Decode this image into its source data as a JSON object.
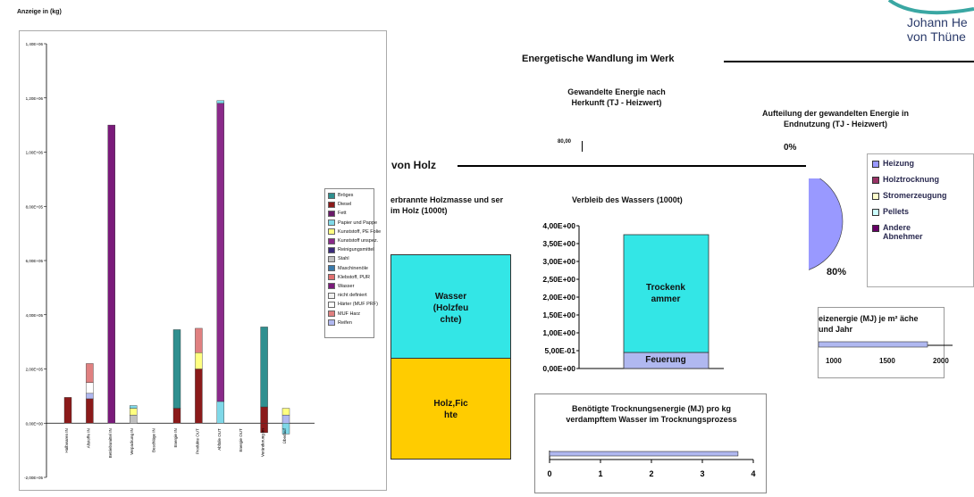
{
  "header": {
    "logo_line1": "Johann He",
    "logo_line2": "von Thüne",
    "logo_arc_color": "#3aa7a3",
    "section_title": "Energetische Wandlung im Werk",
    "holz_title": "von Holz"
  },
  "chart_data": [
    {
      "type": "bar",
      "stacked": true,
      "title": "Anzeige in (kg)",
      "ylim": [
        -200000,
        1400000
      ],
      "yticks": [
        "1,40E+06",
        "1,20E+06",
        "1,00E+06",
        "8,00E+05",
        "6,00E+05",
        "4,00E+05",
        "2,00E+05",
        "0,00E+00",
        "-2,00E+05"
      ],
      "categories": [
        "Halbwaren IN",
        "Altstoffe IN",
        "Betriebsmittel IN",
        "Verpackung IN",
        "Beschläge IN",
        "Energie IN",
        "Produkte OUT",
        "Abfälle OUT",
        "Energie OUT",
        "Veränderung im ",
        "Überlauf"
      ],
      "legend": [
        "Bröges",
        "Diesel",
        "Fett",
        "Papier und Pappe",
        "Kunststoff, PE Folie",
        "Kunststoff unspez.",
        "Reinigungsmittel",
        "Stahl",
        "Maschinenöle",
        "Klebstoff, PUR",
        "Wasser",
        "nicht definiert",
        "Härter (MUF PRF)",
        "MUF Harz",
        "Reifen"
      ],
      "colors": [
        "#2f8f8f",
        "#8b1a1a",
        "#6a1a6a",
        "#7fd8e8",
        "#ffff80",
        "#8a2a8a",
        "#3a2a7a",
        "#c0c0c0",
        "#3a7aaa",
        "#e07070",
        "#7a1a7a",
        "#f0f0f0",
        "#ffffff",
        "#e08080",
        "#b0b8f0"
      ],
      "stacks": [
        [
          {
            "s": 1,
            "v": 95000
          }
        ],
        [
          {
            "s": 1,
            "v": 90000
          },
          {
            "s": 14,
            "v": 20000
          },
          {
            "s": 12,
            "v": 40000
          },
          {
            "s": 13,
            "v": 70000
          }
        ],
        [
          {
            "s": 10,
            "v": 1100000
          }
        ],
        [
          {
            "s": 7,
            "v": 30000
          },
          {
            "s": 4,
            "v": 25000
          },
          {
            "s": 3,
            "v": 10000
          }
        ],
        [],
        [
          {
            "s": 1,
            "v": 55000
          },
          {
            "s": 0,
            "v": 290000
          }
        ],
        [
          {
            "s": 1,
            "v": 200000
          },
          {
            "s": 4,
            "v": 60000
          },
          {
            "s": 13,
            "v": 90000
          }
        ],
        [
          {
            "s": 3,
            "v": 80000
          },
          {
            "s": 5,
            "v": 1100000
          },
          {
            "s": 3,
            "v": 10000
          }
        ],
        [],
        [
          {
            "s": 1,
            "v": -35000
          },
          {
            "s": 1,
            "v": 60000
          },
          {
            "s": 0,
            "v": 295000
          }
        ],
        [
          {
            "s": 3,
            "v": -40000
          },
          {
            "s": 14,
            "v": 30000
          },
          {
            "s": 4,
            "v": 25000
          }
        ]
      ]
    },
    {
      "type": "bar",
      "stacked": true,
      "title": "Verbleib des Wassers (1000t)",
      "ylim": [
        0,
        4
      ],
      "yticks": [
        "4,00E+00",
        "3,50E+00",
        "3,00E+00",
        "2,50E+00",
        "2,00E+00",
        "1,50E+00",
        "1,00E+00",
        "5,00E-01",
        "0,00E+00"
      ],
      "series": [
        {
          "name": "Feuerung",
          "values": [
            0.45
          ],
          "color": "#b0b8f0"
        },
        {
          "name": "Trockenkammer",
          "values": [
            3.3
          ],
          "color": "#33e6e6"
        }
      ],
      "segment_labels": [
        "Feuerung",
        "Trockenk ammer"
      ]
    },
    {
      "type": "bar",
      "stacked": true,
      "title": "erbrannte Holzmasse und ser im Holz (1000t)",
      "series": [
        {
          "name": "Holz,Fichte",
          "label": "Holz,Fic hte",
          "color": "#ffcc00"
        },
        {
          "name": "Wasser",
          "label": "Wasser (Holzfeu chte)",
          "color": "#33e6e6"
        }
      ]
    },
    {
      "type": "bar",
      "orientation": "horizontal",
      "title": "Benötigte Trocknungsenergie (MJ) pro kg verdampftem Wasser im Trocknungsprozess",
      "xlim": [
        0,
        4
      ],
      "xticks": [
        "0",
        "1",
        "2",
        "3",
        "4"
      ],
      "values": [
        3.7
      ],
      "color": "#b0b8f0"
    },
    {
      "type": "bar",
      "orientation": "horizontal",
      "title": "eizenergie (MJ) je m² äche und Jahr",
      "xticks": [
        "1000",
        "1500",
        "2000"
      ],
      "values": [
        1850
      ],
      "color": "#b0b8f0"
    },
    {
      "type": "pie",
      "title": "Aufteilung der gewandelten Energie in Endnutzung (TJ - Heizwert)",
      "slices": [
        {
          "name": "Heizung",
          "value": 80,
          "label": "80%",
          "color": "#9999ff"
        }
      ],
      "legend": [
        {
          "name": "Heizung",
          "color": "#9999ff"
        },
        {
          "name": "Holztrocknung",
          "color": "#993366"
        },
        {
          "name": "Stromerzeugung",
          "color": "#ffffcc"
        },
        {
          "name": "Pellets",
          "color": "#ccffff"
        },
        {
          "name": "Andere Abnehmer",
          "color": "#660066"
        }
      ],
      "stray_label": "0%"
    },
    {
      "type": "bar",
      "title": "Gewandelte Energie nach Herkunft (TJ - Heizwert)",
      "yticks": [
        "80,00"
      ]
    }
  ]
}
